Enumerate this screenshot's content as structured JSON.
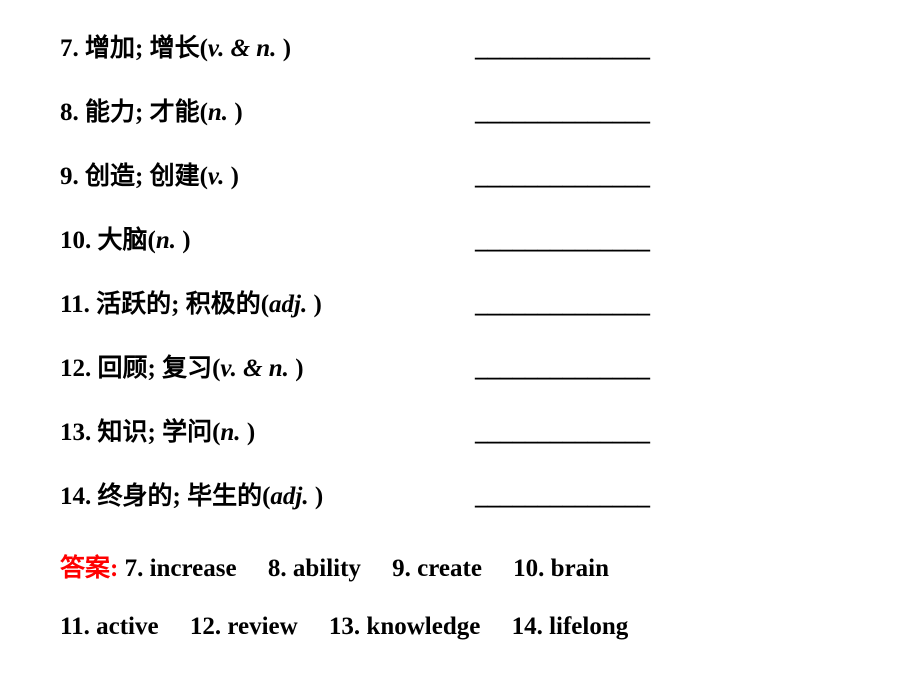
{
  "rows": [
    {
      "num": "7.",
      "zh": "增加; 增长",
      "pos": "v. & n.",
      "blank": "______________"
    },
    {
      "num": "8.",
      "zh": "能力; 才能",
      "pos": "n.",
      "blank": "______________"
    },
    {
      "num": "9.",
      "zh": "创造; 创建",
      "pos": "v.",
      "blank": "______________"
    },
    {
      "num": "10.",
      "zh": "大脑",
      "pos": "n.",
      "blank": "______________"
    },
    {
      "num": "11.",
      "zh": "活跃的; 积极的",
      "pos": "adj.",
      "blank": "______________"
    },
    {
      "num": "12.",
      "zh": "回顾; 复习",
      "pos": "v. & n.",
      "blank": "______________"
    },
    {
      "num": "13.",
      "zh": "知识; 学问",
      "pos": "n.",
      "blank": "______________"
    },
    {
      "num": "14.",
      "zh": "终身的; 毕生的",
      "pos": "adj.",
      "blank": "______________"
    }
  ],
  "answers": {
    "label": "答案:",
    "line1": " 7. increase  8. ability  9. create  10. brain",
    "line2": "11. active  12. review  13. knowledge  14. lifelong"
  },
  "colors": {
    "text": "#000000",
    "answer_label": "#ff0000",
    "background": "#ffffff"
  },
  "typography": {
    "font_family": "Times New Roman / SimSun",
    "font_size_pt": 19,
    "font_weight": "bold"
  }
}
